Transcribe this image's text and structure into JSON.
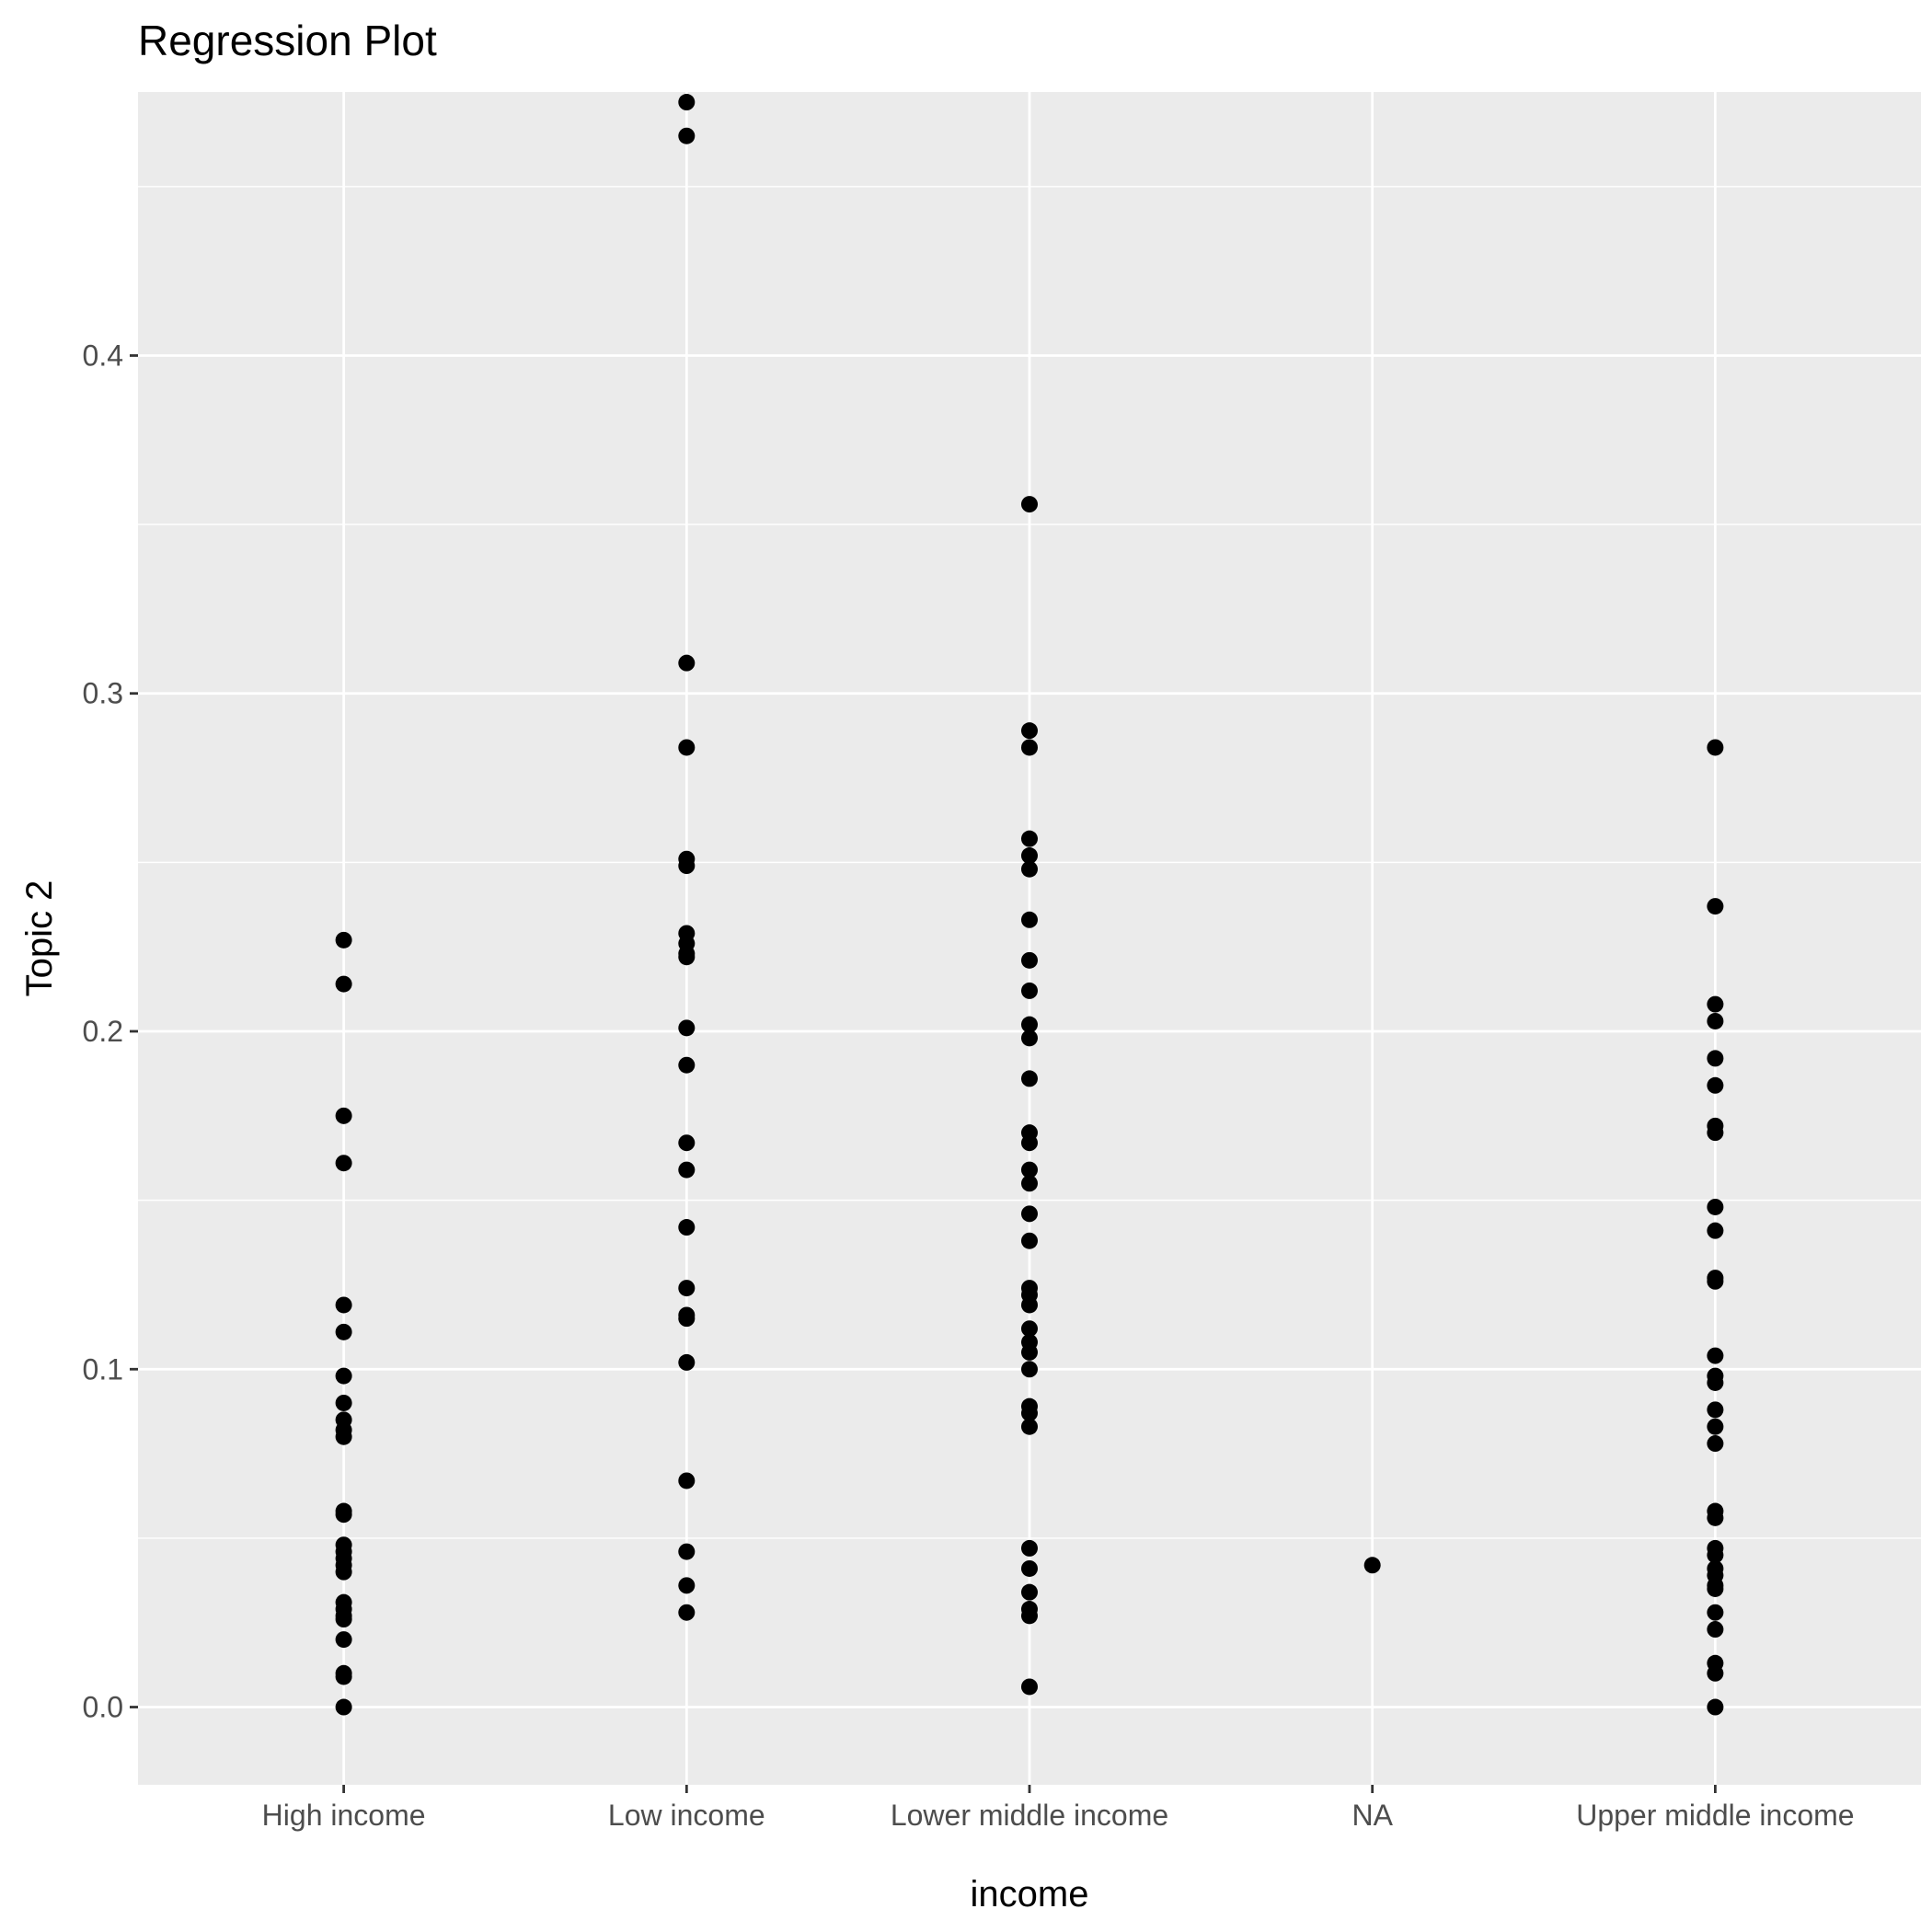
{
  "chart_data": {
    "type": "scatter",
    "title": "Regression Plot",
    "xlabel": "income",
    "ylabel": "Topic 2",
    "categories": [
      "High income",
      "Low income",
      "Lower middle income",
      "NA",
      "Upper middle income"
    ],
    "ylim": [
      -0.023,
      0.478
    ],
    "y_ticks": [
      0.0,
      0.1,
      0.2,
      0.3,
      0.4
    ],
    "y_tick_labels": [
      "0.0",
      "0.1",
      "0.2",
      "0.3",
      "0.4"
    ],
    "grid": true,
    "legend": "none",
    "colors": {
      "panel": "#ebebeb",
      "grid": "#ffffff",
      "point": "#000000",
      "tick": "#4d4d4d"
    },
    "series": [
      {
        "category": "High income",
        "values": [
          0.227,
          0.214,
          0.175,
          0.161,
          0.119,
          0.111,
          0.098,
          0.09,
          0.085,
          0.082,
          0.08,
          0.058,
          0.057,
          0.048,
          0.046,
          0.044,
          0.042,
          0.04,
          0.031,
          0.029,
          0.027,
          0.026,
          0.02,
          0.01,
          0.009,
          0.0
        ]
      },
      {
        "category": "Low income",
        "values": [
          0.475,
          0.465,
          0.309,
          0.284,
          0.251,
          0.249,
          0.229,
          0.226,
          0.223,
          0.222,
          0.201,
          0.19,
          0.167,
          0.159,
          0.142,
          0.124,
          0.116,
          0.115,
          0.102,
          0.067,
          0.046,
          0.036,
          0.028
        ]
      },
      {
        "category": "Lower middle income",
        "values": [
          0.356,
          0.289,
          0.284,
          0.257,
          0.252,
          0.248,
          0.233,
          0.221,
          0.212,
          0.202,
          0.198,
          0.186,
          0.17,
          0.167,
          0.159,
          0.155,
          0.146,
          0.138,
          0.124,
          0.122,
          0.119,
          0.112,
          0.108,
          0.105,
          0.1,
          0.089,
          0.087,
          0.083,
          0.047,
          0.041,
          0.034,
          0.029,
          0.027,
          0.006
        ]
      },
      {
        "category": "NA",
        "values": [
          0.042
        ]
      },
      {
        "category": "Upper middle income",
        "values": [
          0.284,
          0.237,
          0.208,
          0.203,
          0.192,
          0.184,
          0.172,
          0.17,
          0.148,
          0.141,
          0.127,
          0.126,
          0.104,
          0.098,
          0.096,
          0.088,
          0.083,
          0.078,
          0.058,
          0.056,
          0.047,
          0.045,
          0.041,
          0.039,
          0.036,
          0.035,
          0.028,
          0.023,
          0.013,
          0.01,
          0.0
        ]
      }
    ]
  }
}
